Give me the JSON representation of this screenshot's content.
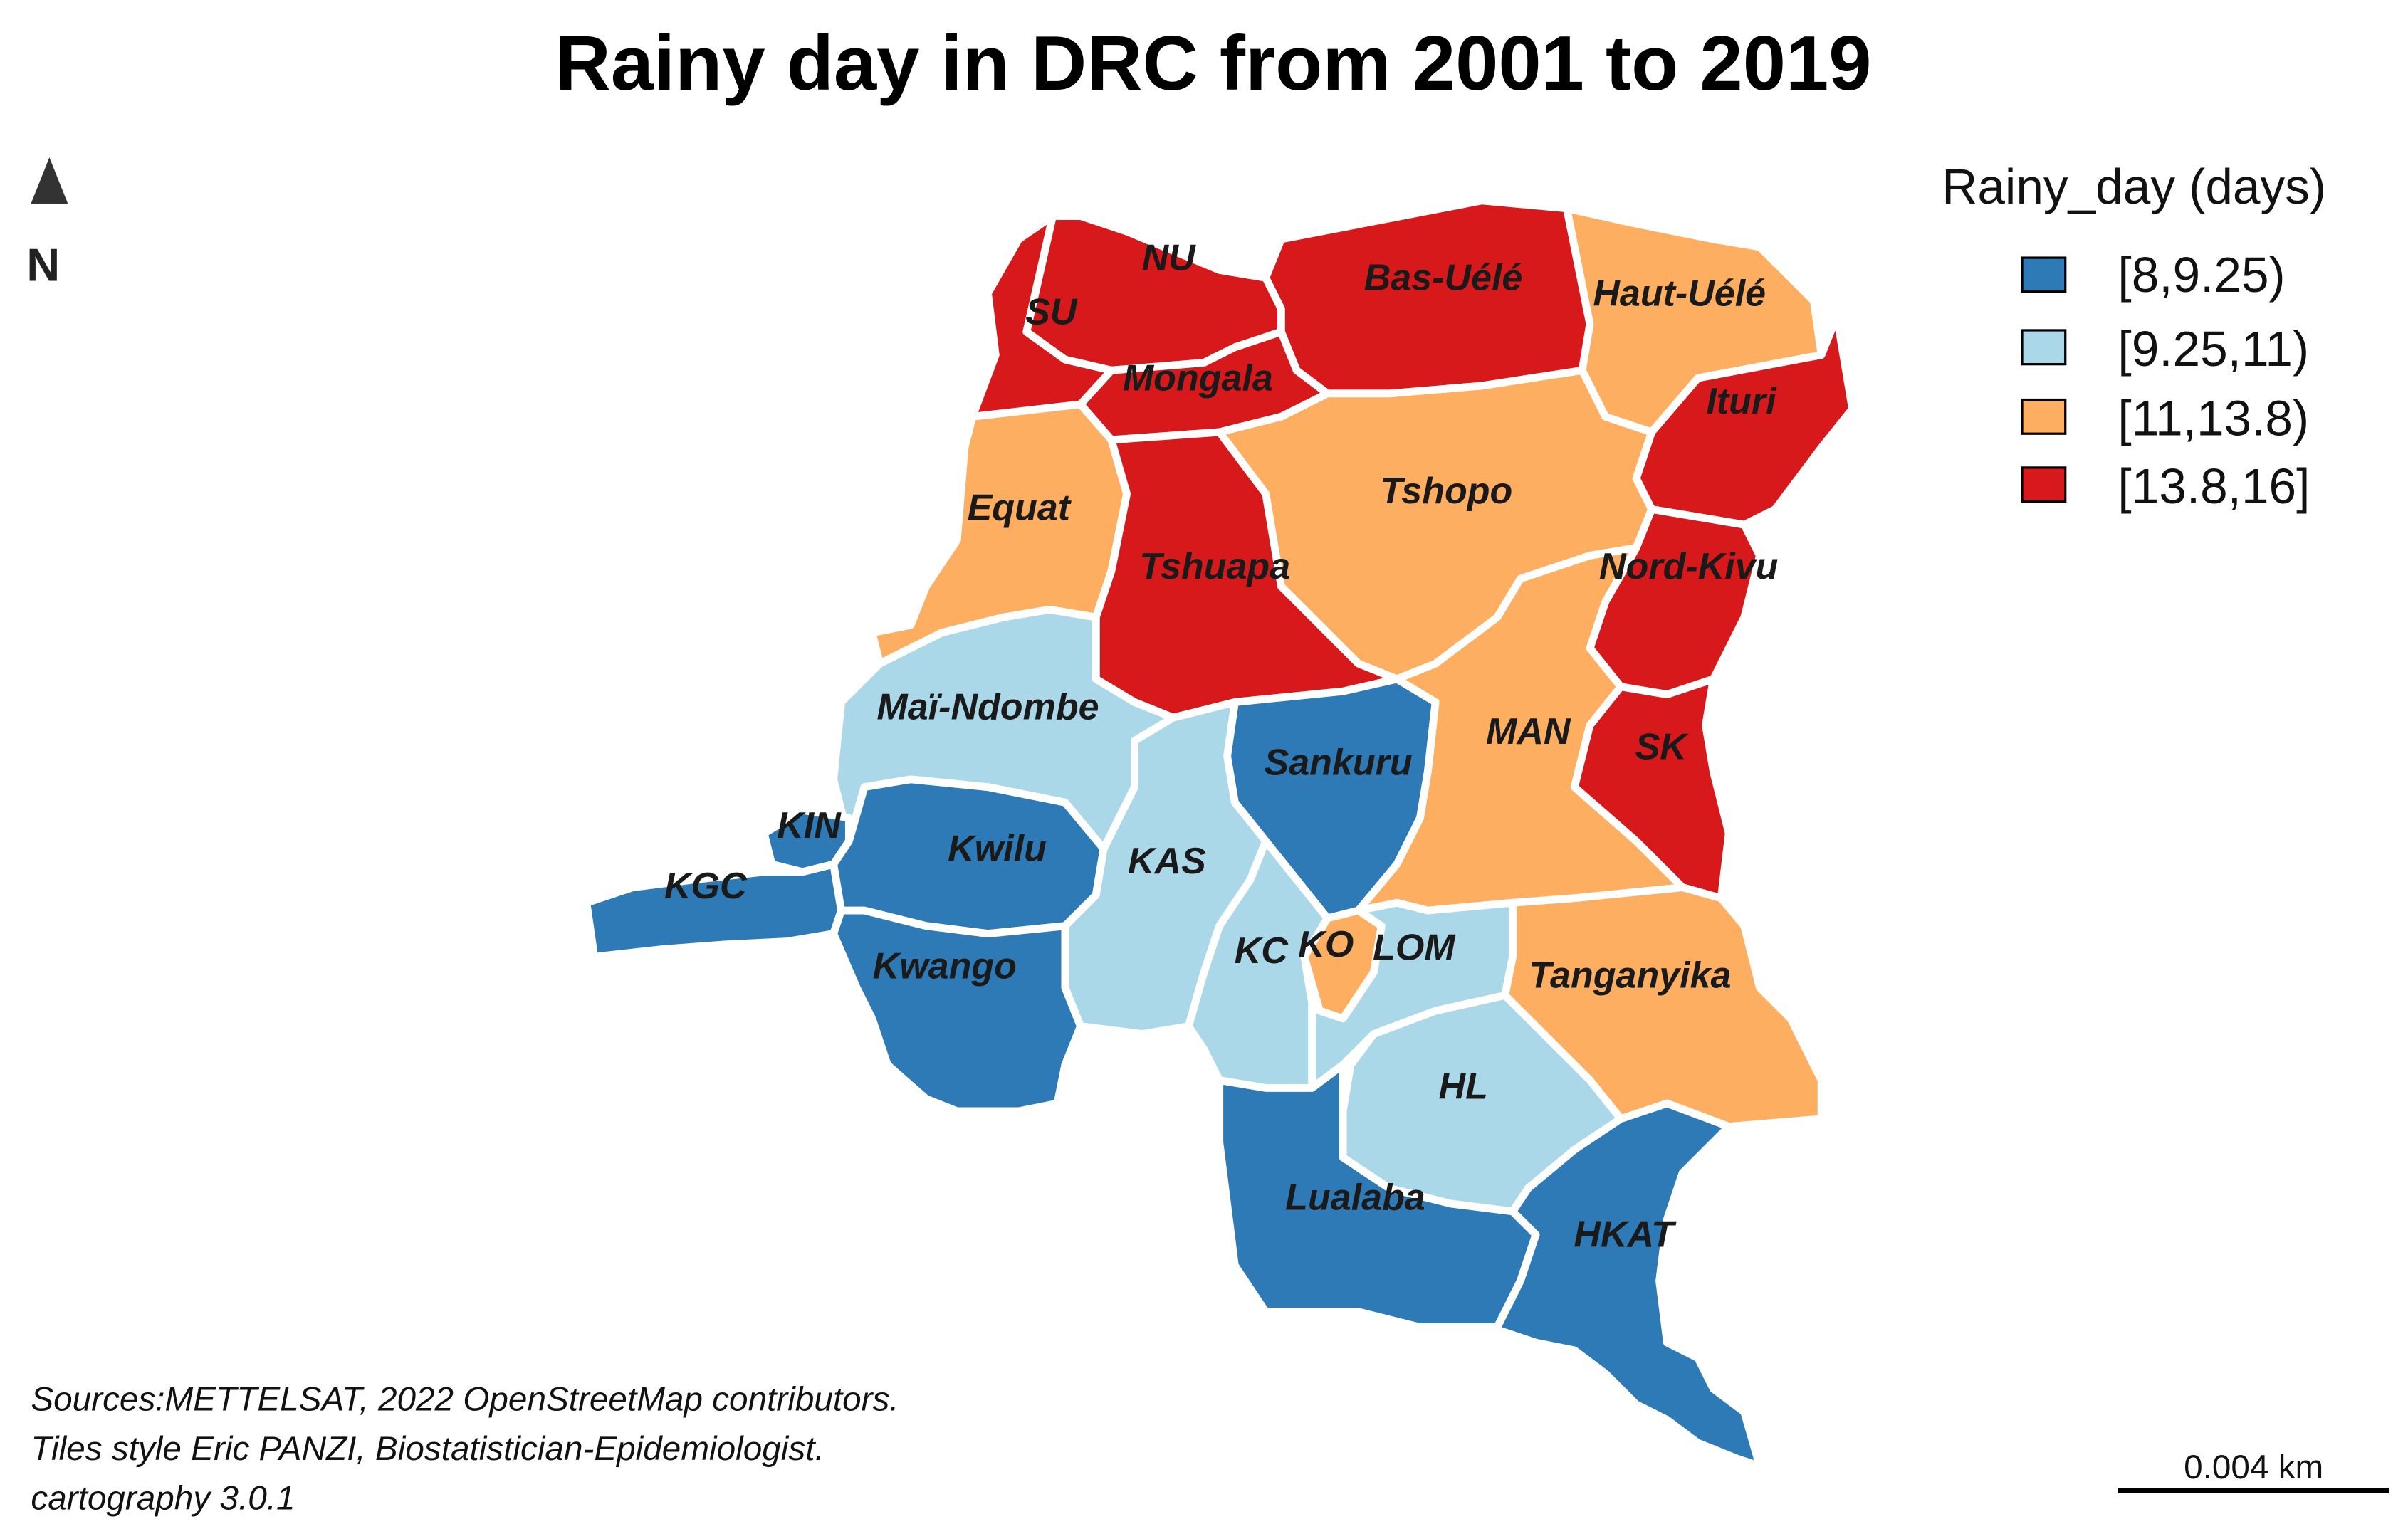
{
  "title": "Rainy day in DRC from 2001 to 2019",
  "north_arrow": {
    "label": "N",
    "icon": "north-arrow-icon"
  },
  "legend": {
    "title": "Rainy_day (days)",
    "classes": [
      {
        "label": "[8,9.25)",
        "color": "#2e7ab6"
      },
      {
        "label": "[9.25,11)",
        "color": "#abd8e9"
      },
      {
        "label": "[11,13.8)",
        "color": "#fdae61"
      },
      {
        "label": "[13.8,16]",
        "color": "#d7191c"
      }
    ]
  },
  "provinces": [
    {
      "label": "NU",
      "class": 3
    },
    {
      "label": "SU",
      "class": 3
    },
    {
      "label": "Bas-Uélé",
      "class": 3
    },
    {
      "label": "Haut-Uélé",
      "class": 2
    },
    {
      "label": "Mongala",
      "class": 3
    },
    {
      "label": "Ituri",
      "class": 3
    },
    {
      "label": "Equat",
      "class": 2
    },
    {
      "label": "Tshopo",
      "class": 2
    },
    {
      "label": "Tshuapa",
      "class": 3
    },
    {
      "label": "Nord-Kivu",
      "class": 3
    },
    {
      "label": "Maï-Ndombe",
      "class": 1
    },
    {
      "label": "Sankuru",
      "class": 0
    },
    {
      "label": "MAN",
      "class": 2
    },
    {
      "label": "SK",
      "class": 3
    },
    {
      "label": "KIN",
      "class": 0
    },
    {
      "label": "KGC",
      "class": 0
    },
    {
      "label": "Kwilu",
      "class": 0
    },
    {
      "label": "KAS",
      "class": 1
    },
    {
      "label": "Kwango",
      "class": 0
    },
    {
      "label": "KC",
      "class": 1
    },
    {
      "label": "KO",
      "class": 2
    },
    {
      "label": "LOM",
      "class": 1
    },
    {
      "label": "Tanganyika",
      "class": 2
    },
    {
      "label": "HL",
      "class": 1
    },
    {
      "label": "Lualaba",
      "class": 0
    },
    {
      "label": "HKAT",
      "class": 0
    }
  ],
  "sources": [
    "Sources:METTELSAT, 2022 OpenStreetMap contributors.",
    "Tiles style Eric PANZI, Biostatistician-Epidemiologist.",
    "cartography 3.0.1"
  ],
  "scale_bar": {
    "label": "0.004 km"
  }
}
